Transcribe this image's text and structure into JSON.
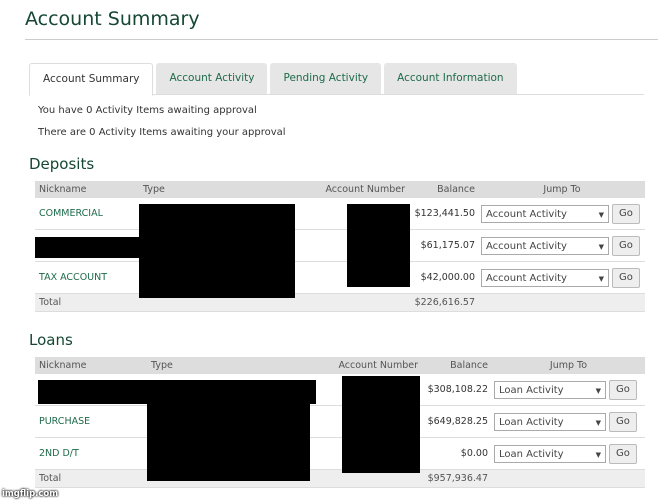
{
  "header": {
    "title": "Account Summary"
  },
  "tabs": [
    {
      "label": "Account Summary",
      "active": true
    },
    {
      "label": "Account Activity"
    },
    {
      "label": "Pending Activity"
    },
    {
      "label": "Account Information"
    }
  ],
  "messages": [
    "You have 0 Activity Items awaiting approval",
    "There are 0 Activity Items awaiting your approval"
  ],
  "deposits": {
    "title": "Deposits",
    "columns": [
      "Nickname",
      "Type",
      "Account Number",
      "Balance",
      "Jump To"
    ],
    "rows": [
      {
        "nickname": "COMMERCIAL",
        "balance": "$123,441.50",
        "jump": "Account Activity",
        "go": "Go"
      },
      {
        "nickname": "",
        "balance": "$61,175.07",
        "jump": "Account Activity",
        "go": "Go"
      },
      {
        "nickname": "TAX ACCOUNT",
        "balance": "$42,000.00",
        "jump": "Account Activity",
        "go": "Go"
      }
    ],
    "total_label": "Total",
    "total": "$226,616.57"
  },
  "loans": {
    "title": "Loans",
    "columns": [
      "Nickname",
      "Type",
      "Account Number",
      "Balance",
      "Jump To"
    ],
    "rows": [
      {
        "nickname": "",
        "balance": "$308,108.22",
        "jump": "Loan Activity",
        "go": "Go"
      },
      {
        "nickname": "PURCHASE",
        "balance": "$649,828.25",
        "jump": "Loan Activity",
        "go": "Go"
      },
      {
        "nickname": "2ND D/T",
        "balance": "$0.00",
        "jump": "Loan Activity",
        "go": "Go"
      }
    ],
    "total_label": "Total",
    "total": "$957,936.47"
  },
  "watermark": "imgflip.com",
  "colors": {
    "accent": "#1e6b4b",
    "title": "#154734"
  }
}
